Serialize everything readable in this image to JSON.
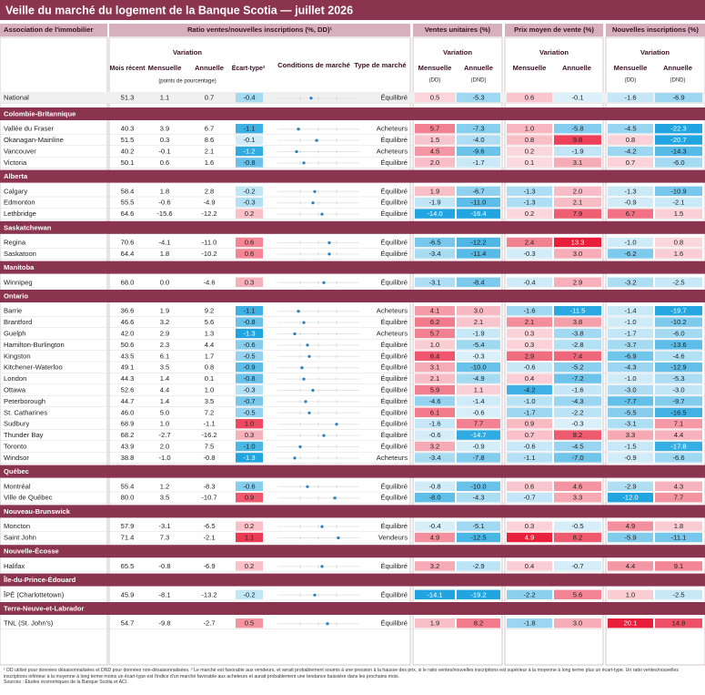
{
  "title": "Veille du marché du logement de la Banque Scotia — juillet 2026",
  "header": {
    "association": "Association de l'immobilier",
    "ratio": "Ratio ventes/nouvelles inscriptions (%, DD)¹",
    "sales": "Ventes unitaires (%)",
    "price": "Prix moyen de vente (%)",
    "listings": "Nouvelles inscriptions (%)",
    "ratio_variation": "Variation",
    "recent": "Mois récent",
    "ratio_monthly": "Mensuelle",
    "ratio_annual": "Annuelle",
    "points": "(points de pourcentage)",
    "sd": "Écart-type²",
    "conditions": "Conditions de marché",
    "market_type": "Type de marché",
    "sales_variation": "Variation",
    "sales_monthly": "Mensuelle",
    "sales_annual": "Annuelle",
    "sales_dd": "(DD)",
    "sales_dnd": "(DND)",
    "price_variation": "Variation",
    "price_monthly": "Mensuelle",
    "price_annual": "Annuelle",
    "listings_variation": "Variation",
    "listings_monthly": "Mensuelle",
    "listings_annual": "Annuelle",
    "listings_dd": "(DD)",
    "listings_dnd": "(DND)"
  },
  "national": {
    "name": "National",
    "ratio": [
      "51.3",
      "1.1",
      "0.7"
    ],
    "sd": "-0.4",
    "market": "Équilibré",
    "sales": [
      "0.5",
      "-5.3"
    ],
    "price": [
      "0.6",
      "-0.1"
    ],
    "listings": [
      "-1.6",
      "-6.9"
    ]
  },
  "regions": [
    {
      "name": "Colombie-Britannique",
      "rows": [
        {
          "name": "Vallée du Fraser",
          "ratio": [
            "40.3",
            "3.9",
            "6.7"
          ],
          "sd": "-1.1",
          "market": "Acheteurs",
          "sales": [
            "5.7",
            "-7.3"
          ],
          "price": [
            "1.0",
            "-5.8"
          ],
          "listings": [
            "-4.5",
            "-22.3"
          ]
        },
        {
          "name": "Okanagan-Mainline",
          "ratio": [
            "51.5",
            "0.3",
            "8.6"
          ],
          "sd": "-0.1",
          "market": "Équilibré",
          "sales": [
            "1.5",
            "-4.0"
          ],
          "price": [
            "0.8",
            "9.8"
          ],
          "listings": [
            "0.8",
            "-20.7"
          ]
        },
        {
          "name": "Vancouver",
          "ratio": [
            "40.2",
            "-0.1",
            "2.1"
          ],
          "sd": "-1.2",
          "market": "Acheteurs",
          "sales": [
            "4.5",
            "-9.6"
          ],
          "price": [
            "0.2",
            "-1.9"
          ],
          "listings": [
            "-4.2",
            "-14.3"
          ]
        },
        {
          "name": "Victoria",
          "ratio": [
            "50.1",
            "0.6",
            "1.6"
          ],
          "sd": "-0.8",
          "market": "Équilibré",
          "sales": [
            "2.0",
            "-1.7"
          ],
          "price": [
            "0.1",
            "3.1"
          ],
          "listings": [
            "0.7",
            "-6.0"
          ]
        }
      ]
    },
    {
      "name": "Alberta",
      "rows": [
        {
          "name": "Calgary",
          "ratio": [
            "58.4",
            "1.8",
            "2.8"
          ],
          "sd": "-0.2",
          "market": "Équilibré",
          "sales": [
            "1.9",
            "-6.7"
          ],
          "price": [
            "-1.3",
            "2.0"
          ],
          "listings": [
            "-1.3",
            "-10.9"
          ]
        },
        {
          "name": "Edmonton",
          "ratio": [
            "55.5",
            "-0.6",
            "-4.9"
          ],
          "sd": "-0.3",
          "market": "Équilibré",
          "sales": [
            "-1.9",
            "-11.0"
          ],
          "price": [
            "-1.3",
            "2.1"
          ],
          "listings": [
            "-0.9",
            "-2.1"
          ]
        },
        {
          "name": "Lethbridge",
          "ratio": [
            "64.6",
            "-15.6",
            "-12.2"
          ],
          "sd": "0.2",
          "market": "Équilibré",
          "sales": [
            "-14.0",
            "-16.4"
          ],
          "price": [
            "0.2",
            "7.9"
          ],
          "listings": [
            "6.7",
            "1.5"
          ]
        }
      ]
    },
    {
      "name": "Saskatchewan",
      "rows": [
        {
          "name": "Regina",
          "ratio": [
            "70.6",
            "-4.1",
            "-11.0"
          ],
          "sd": "0.6",
          "market": "Équilibré",
          "sales": [
            "-6.5",
            "-12.2"
          ],
          "price": [
            "2.4",
            "13.3"
          ],
          "listings": [
            "-1.0",
            "0.8"
          ]
        },
        {
          "name": "Saskatoon",
          "ratio": [
            "64.4",
            "1.8",
            "-10.2"
          ],
          "sd": "0.6",
          "market": "Équilibré",
          "sales": [
            "-3.4",
            "-11.4"
          ],
          "price": [
            "-0.3",
            "3.0"
          ],
          "listings": [
            "-6.2",
            "1.6"
          ]
        }
      ]
    },
    {
      "name": "Manitoba",
      "rows": [
        {
          "name": "Winnipeg",
          "ratio": [
            "68.0",
            "0.0",
            "-4.6"
          ],
          "sd": "0.3",
          "market": "Équilibré",
          "sales": [
            "-3.1",
            "-8.4"
          ],
          "price": [
            "-0.4",
            "2.9"
          ],
          "listings": [
            "-3.2",
            "-2.5"
          ]
        }
      ]
    },
    {
      "name": "Ontario",
      "rows": [
        {
          "name": "Barrie",
          "ratio": [
            "36.6",
            "1.9",
            "9.2"
          ],
          "sd": "-1.1",
          "market": "Acheteurs",
          "sales": [
            "4.1",
            "3.0"
          ],
          "price": [
            "-1.6",
            "-11.5"
          ],
          "listings": [
            "-1.4",
            "-19.7"
          ]
        },
        {
          "name": "Brantford",
          "ratio": [
            "46.6",
            "3.2",
            "5.6"
          ],
          "sd": "-0.8",
          "market": "Équilibré",
          "sales": [
            "6.2",
            "2.1"
          ],
          "price": [
            "2.1",
            "3.8"
          ],
          "listings": [
            "-1.0",
            "-10.2"
          ]
        },
        {
          "name": "Guelph",
          "ratio": [
            "42.0",
            "2.9",
            "1.3"
          ],
          "sd": "-1.3",
          "market": "Acheteurs",
          "sales": [
            "5.7",
            "-1.9"
          ],
          "price": [
            "0.3",
            "-3.8"
          ],
          "listings": [
            "-1.7",
            "-6.0"
          ]
        },
        {
          "name": "Hamilton-Burlington",
          "ratio": [
            "50.6",
            "2.3",
            "4.4"
          ],
          "sd": "-0.6",
          "market": "Équilibré",
          "sales": [
            "1.0",
            "-5.4"
          ],
          "price": [
            "0.3",
            "-2.8"
          ],
          "listings": [
            "-3.7",
            "-13.6"
          ]
        },
        {
          "name": "Kingston",
          "ratio": [
            "43.5",
            "6.1",
            "1.7"
          ],
          "sd": "-0.5",
          "market": "Équilibré",
          "sales": [
            "8.4",
            "-0.3"
          ],
          "price": [
            "2.9",
            "7.4"
          ],
          "listings": [
            "-6.9",
            "-4.6"
          ]
        },
        {
          "name": "Kitchener-Waterloo",
          "ratio": [
            "49.1",
            "3.5",
            "0.8"
          ],
          "sd": "-0.9",
          "market": "Équilibré",
          "sales": [
            "3.1",
            "-10.0"
          ],
          "price": [
            "-0.6",
            "-5.2"
          ],
          "listings": [
            "-4.3",
            "-12.9"
          ]
        },
        {
          "name": "London",
          "ratio": [
            "44.3",
            "1.4",
            "0.1"
          ],
          "sd": "-0.8",
          "market": "Équilibré",
          "sales": [
            "2.1",
            "-4.9"
          ],
          "price": [
            "0.4",
            "-7.2"
          ],
          "listings": [
            "-1.0",
            "-5.3"
          ]
        },
        {
          "name": "Ottawa",
          "ratio": [
            "52.6",
            "4.4",
            "1.0"
          ],
          "sd": "-0.3",
          "market": "Équilibré",
          "sales": [
            "5.9",
            "1.1"
          ],
          "price": [
            "-4.2",
            "-1.6"
          ],
          "listings": [
            "-3.0",
            "-3.0"
          ]
        },
        {
          "name": "Peterborough",
          "ratio": [
            "44.7",
            "1.4",
            "3.5"
          ],
          "sd": "-0.7",
          "market": "Équilibré",
          "sales": [
            "-4.6",
            "-1.4"
          ],
          "price": [
            "-1.0",
            "-4.3"
          ],
          "listings": [
            "-7.7",
            "-9.7"
          ]
        },
        {
          "name": "St. Catharines",
          "ratio": [
            "46.0",
            "5.0",
            "7.2"
          ],
          "sd": "-0.5",
          "market": "Équilibré",
          "sales": [
            "6.1",
            "-0.6"
          ],
          "price": [
            "-1.7",
            "-2.2"
          ],
          "listings": [
            "-5.5",
            "-16.5"
          ]
        },
        {
          "name": "Sudbury",
          "ratio": [
            "68.9",
            "1.0",
            "-1.1"
          ],
          "sd": "1.0",
          "market": "Équilibré",
          "sales": [
            "-1.6",
            "7.7"
          ],
          "price": [
            "0.9",
            "-0.3"
          ],
          "listings": [
            "-3.1",
            "7.1"
          ]
        },
        {
          "name": "Thunder Bay",
          "ratio": [
            "68.2",
            "-2.7",
            "-16.2"
          ],
          "sd": "0.3",
          "market": "Équilibré",
          "sales": [
            "-0.6",
            "-14.7"
          ],
          "price": [
            "0.7",
            "8.2"
          ],
          "listings": [
            "3.3",
            "4.4"
          ]
        },
        {
          "name": "Toronto",
          "ratio": [
            "43.9",
            "2.0",
            "7.5"
          ],
          "sd": "-1.0",
          "market": "Équilibré",
          "sales": [
            "3.2",
            "-0.9"
          ],
          "price": [
            "-0.6",
            "-4.5"
          ],
          "listings": [
            "-1.5",
            "-17.8"
          ]
        },
        {
          "name": "Windsor",
          "ratio": [
            "38.8",
            "-1.0",
            "-0.8"
          ],
          "sd": "-1.3",
          "market": "Acheteurs",
          "sales": [
            "-3.4",
            "-7.8"
          ],
          "price": [
            "-1.1",
            "-7.0"
          ],
          "listings": [
            "-0.9",
            "-6.6"
          ]
        }
      ]
    },
    {
      "name": "Québec",
      "rows": [
        {
          "name": "Montréal",
          "ratio": [
            "55.4",
            "1.2",
            "-8.3"
          ],
          "sd": "-0.6",
          "market": "Équilibré",
          "sales": [
            "-0.8",
            "-10.0"
          ],
          "price": [
            "0.6",
            "4.6"
          ],
          "listings": [
            "-2.9",
            "4.3"
          ]
        },
        {
          "name": "Ville de Québec",
          "ratio": [
            "80.0",
            "3.5",
            "-10.7"
          ],
          "sd": "0.9",
          "market": "Équilibré",
          "sales": [
            "-8.0",
            "-4.3"
          ],
          "price": [
            "-0.7",
            "3.3"
          ],
          "listings": [
            "-12.0",
            "7.7"
          ]
        }
      ]
    },
    {
      "name": "Nouveau-Brunswick",
      "rows": [
        {
          "name": "Moncton",
          "ratio": [
            "57.9",
            "-3.1",
            "-6.5"
          ],
          "sd": "0.2",
          "market": "Équilibré",
          "sales": [
            "-0.4",
            "-5.1"
          ],
          "price": [
            "0.3",
            "-0.5"
          ],
          "listings": [
            "4.9",
            "1.8"
          ]
        },
        {
          "name": "Saint John",
          "ratio": [
            "71.4",
            "7.3",
            "-2.1"
          ],
          "sd": "1.1",
          "market": "Vendeurs",
          "sales": [
            "4.9",
            "-12.5"
          ],
          "price": [
            "4.9",
            "8.2"
          ],
          "listings": [
            "-5.9",
            "-11.1"
          ]
        }
      ]
    },
    {
      "name": "Nouvelle-Écosse",
      "rows": [
        {
          "name": "Halifax",
          "ratio": [
            "65.5",
            "-0.8",
            "-6.9"
          ],
          "sd": "0.2",
          "market": "Équilibré",
          "sales": [
            "3.2",
            "-2.9"
          ],
          "price": [
            "0.4",
            "-0.7"
          ],
          "listings": [
            "4.4",
            "9.1"
          ]
        }
      ]
    },
    {
      "name": "Île-du-Prince-Édouard",
      "rows": [
        {
          "name": "ÎPÉ (Charlottetown)",
          "ratio": [
            "45.9",
            "-8.1",
            "-13.2"
          ],
          "sd": "-0.2",
          "market": "Équilibré",
          "sales": [
            "-14.1",
            "-19.2"
          ],
          "price": [
            "-2.2",
            "5.6"
          ],
          "listings": [
            "1.0",
            "-2.5"
          ]
        }
      ]
    },
    {
      "name": "Terre-Neuve-et-Labrador",
      "rows": [
        {
          "name": "TNL (St. John's)",
          "ratio": [
            "54.7",
            "-9.8",
            "-2.7"
          ],
          "sd": "0.5",
          "market": "Équilibré",
          "sales": [
            "1.9",
            "8.2"
          ],
          "price": [
            "-1.8",
            "3.0"
          ],
          "listings": [
            "20.1",
            "14.8"
          ]
        }
      ]
    }
  ],
  "notes": [
    "¹ DD utilisé pour données désaisonnalisées et DND pour données non-désaisonnalisées. ² Le marché est favorable aux vendeurs, et serait probablement soumis à une pression à la hausse des prix, si le ratio ventes/nouvelles inscriptions est supérieur à la moyenne à long terme plus un écart-type. Un ratio ventes/nouvelles inscriptions inférieur à la moyenne à long terme moins un écart-type est l'indice d'un marché favorable aux acheteurs et aurait probablement une tendance baissière dans les prochains mois.",
    "Sources : Études économiques de la Banque Scotia et ACI."
  ]
}
